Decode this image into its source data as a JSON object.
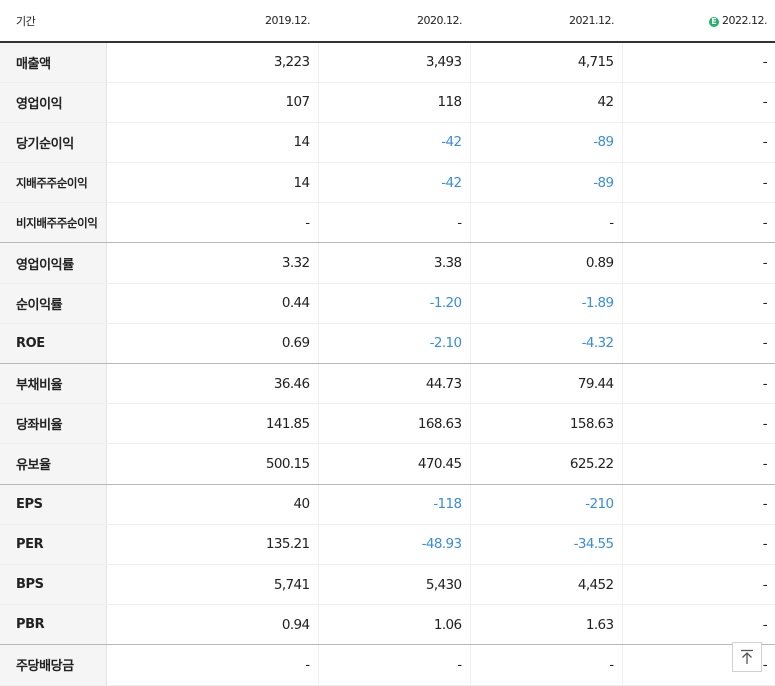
{
  "header": {
    "label": "기간",
    "periods": [
      "2019.12.",
      "2020.12.",
      "2021.12.",
      "2022.12."
    ],
    "estimate_icon": "E"
  },
  "rows": [
    {
      "label": "매출액",
      "values": [
        "3,223",
        "3,493",
        "4,715",
        "-"
      ],
      "negative": [
        false,
        false,
        false,
        false
      ],
      "small": false,
      "group_end": false
    },
    {
      "label": "영업이익",
      "values": [
        "107",
        "118",
        "42",
        "-"
      ],
      "negative": [
        false,
        false,
        false,
        false
      ],
      "small": false,
      "group_end": false
    },
    {
      "label": "당기순이익",
      "values": [
        "14",
        "-42",
        "-89",
        "-"
      ],
      "negative": [
        false,
        true,
        true,
        false
      ],
      "small": false,
      "group_end": false
    },
    {
      "label": "지배주주순이익",
      "values": [
        "14",
        "-42",
        "-89",
        "-"
      ],
      "negative": [
        false,
        true,
        true,
        false
      ],
      "small": true,
      "group_end": false
    },
    {
      "label": "비지배주주순이익",
      "values": [
        "-",
        "-",
        "-",
        "-"
      ],
      "negative": [
        false,
        false,
        false,
        false
      ],
      "small": true,
      "group_end": true
    },
    {
      "label": "영업이익률",
      "values": [
        "3.32",
        "3.38",
        "0.89",
        "-"
      ],
      "negative": [
        false,
        false,
        false,
        false
      ],
      "small": false,
      "group_end": false
    },
    {
      "label": "순이익률",
      "values": [
        "0.44",
        "-1.20",
        "-1.89",
        "-"
      ],
      "negative": [
        false,
        true,
        true,
        false
      ],
      "small": false,
      "group_end": false
    },
    {
      "label": "ROE",
      "values": [
        "0.69",
        "-2.10",
        "-4.32",
        "-"
      ],
      "negative": [
        false,
        true,
        true,
        false
      ],
      "small": false,
      "group_end": true
    },
    {
      "label": "부채비율",
      "values": [
        "36.46",
        "44.73",
        "79.44",
        "-"
      ],
      "negative": [
        false,
        false,
        false,
        false
      ],
      "small": false,
      "group_end": false
    },
    {
      "label": "당좌비율",
      "values": [
        "141.85",
        "168.63",
        "158.63",
        "-"
      ],
      "negative": [
        false,
        false,
        false,
        false
      ],
      "small": false,
      "group_end": false
    },
    {
      "label": "유보율",
      "values": [
        "500.15",
        "470.45",
        "625.22",
        "-"
      ],
      "negative": [
        false,
        false,
        false,
        false
      ],
      "small": false,
      "group_end": true
    },
    {
      "label": "EPS",
      "values": [
        "40",
        "-118",
        "-210",
        "-"
      ],
      "negative": [
        false,
        true,
        true,
        false
      ],
      "small": false,
      "group_end": false
    },
    {
      "label": "PER",
      "values": [
        "135.21",
        "-48.93",
        "-34.55",
        "-"
      ],
      "negative": [
        false,
        true,
        true,
        false
      ],
      "small": false,
      "group_end": false
    },
    {
      "label": "BPS",
      "values": [
        "5,741",
        "5,430",
        "4,452",
        "-"
      ],
      "negative": [
        false,
        false,
        false,
        false
      ],
      "small": false,
      "group_end": false
    },
    {
      "label": "PBR",
      "values": [
        "0.94",
        "1.06",
        "1.63",
        "-"
      ],
      "negative": [
        false,
        false,
        false,
        false
      ],
      "small": false,
      "group_end": true
    },
    {
      "label": "주당배당금",
      "values": [
        "-",
        "-",
        "-",
        "-"
      ],
      "negative": [
        false,
        false,
        false,
        false
      ],
      "small": false,
      "group_end": false
    }
  ],
  "colors": {
    "negative": "#3a8ddd",
    "estimate_badge": "#1fb36a",
    "label_bg": "#f5f5f5"
  },
  "scroll_top_icon": "arrow-up-icon"
}
